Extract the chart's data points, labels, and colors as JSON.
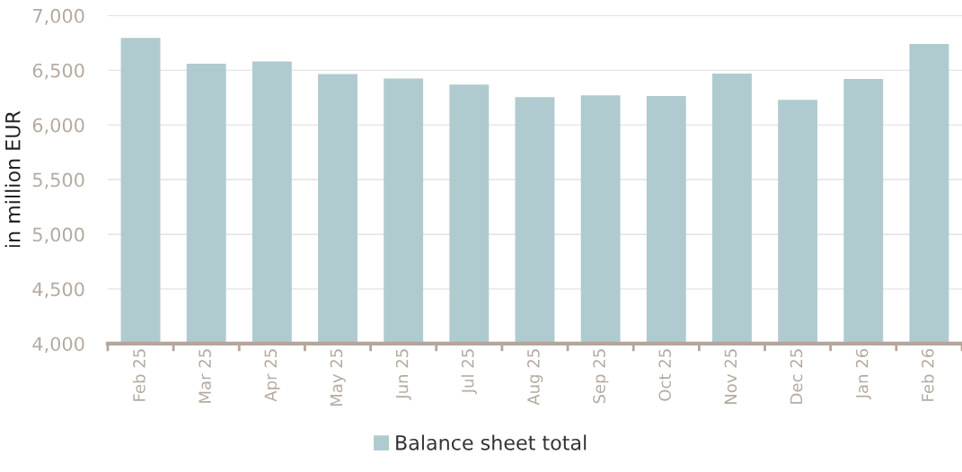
{
  "chart_data": {
    "type": "bar",
    "ylabel": "in million EUR",
    "categories": [
      "Feb 25",
      "Mar 25",
      "Apr 25",
      "May 25",
      "Jun 25",
      "Jul 25",
      "Aug 25",
      "Sep 25",
      "Oct 25",
      "Nov 25",
      "Dec 25",
      "Jan 26",
      "Feb 26"
    ],
    "series": [
      {
        "name": "Balance sheet total",
        "color": "#b0cbcf",
        "values": [
          6795,
          6560,
          6580,
          6465,
          6425,
          6370,
          6255,
          6270,
          6265,
          6470,
          6230,
          6420,
          6740
        ]
      }
    ],
    "ylim": [
      4000,
      7000
    ],
    "yticks": [
      {
        "value": 4000,
        "label": "4,000"
      },
      {
        "value": 4500,
        "label": "4,500"
      },
      {
        "value": 5000,
        "label": "5,000"
      },
      {
        "value": 5500,
        "label": "5,500"
      },
      {
        "value": 6000,
        "label": "6,000"
      },
      {
        "value": 6500,
        "label": "6,500"
      },
      {
        "value": 7000,
        "label": "7,000"
      }
    ],
    "grid": "y",
    "legend": "bottom"
  }
}
